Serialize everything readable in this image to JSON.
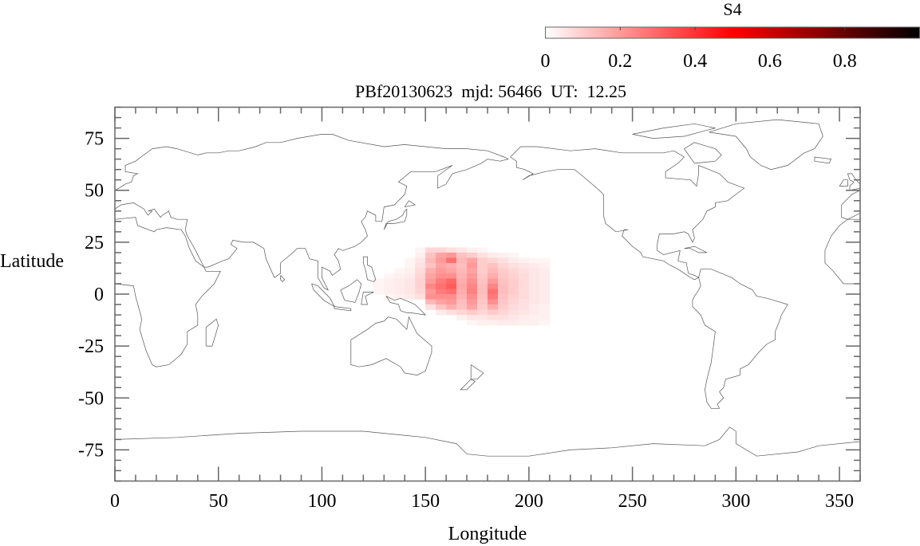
{
  "chart_data": {
    "type": "heatmap",
    "title": "PBf20130623  mjd: 56466  UT:  12.25",
    "xlabel": "Longitude",
    "ylabel": "Latitude",
    "xlim": [
      0,
      360
    ],
    "ylim": [
      -90,
      90
    ],
    "xticks": [
      "0",
      "50",
      "100",
      "150",
      "200",
      "250",
      "300",
      "350"
    ],
    "yticks": [
      "75",
      "50",
      "25",
      "0",
      "-25",
      "-50",
      "-75"
    ],
    "grid": false,
    "background": "world coastlines",
    "colorbar": {
      "label": "S4",
      "range": [
        0,
        1
      ],
      "ticks": [
        "0",
        "0.2",
        "0.4",
        "0.6",
        "0.8"
      ],
      "colormap": [
        "#ffffff",
        "#ff0000",
        "#000000"
      ],
      "placement": "top-right"
    },
    "grid_cells": {
      "lon_centers": [
        127.5,
        132.5,
        137.5,
        142.5,
        147.5,
        152.5,
        157.5,
        162.5,
        167.5,
        172.5,
        177.5,
        182.5,
        187.5,
        192.5,
        197.5,
        202.5,
        207.5
      ],
      "lat_centers": [
        21.25,
        18.75,
        16.25,
        13.75,
        11.25,
        8.75,
        6.25,
        3.75,
        1.25,
        -1.25,
        -3.75,
        -6.25,
        -8.75,
        -11.25,
        -13.75
      ],
      "values": [
        [
          0,
          0,
          0,
          0,
          0.02,
          0.08,
          0.08,
          0.06,
          0.05,
          0.03,
          0.02,
          0,
          0,
          0,
          0,
          0,
          0
        ],
        [
          0,
          0,
          0,
          0,
          0.03,
          0.12,
          0.18,
          0.2,
          0.12,
          0.1,
          0.06,
          0.04,
          0.03,
          0.02,
          0,
          0,
          0
        ],
        [
          0,
          0,
          0,
          0.02,
          0.05,
          0.14,
          0.2,
          0.28,
          0.14,
          0.18,
          0.1,
          0.08,
          0.06,
          0.04,
          0.03,
          0.02,
          0.02
        ],
        [
          0,
          0,
          0,
          0.02,
          0.06,
          0.12,
          0.18,
          0.16,
          0.13,
          0.2,
          0.1,
          0.12,
          0.08,
          0.06,
          0.05,
          0.04,
          0.03
        ],
        [
          0,
          0,
          0.02,
          0.03,
          0.07,
          0.16,
          0.2,
          0.18,
          0.14,
          0.18,
          0.1,
          0.14,
          0.1,
          0.08,
          0.06,
          0.05,
          0.04
        ],
        [
          0,
          0.02,
          0.03,
          0.04,
          0.08,
          0.18,
          0.22,
          0.22,
          0.15,
          0.2,
          0.11,
          0.16,
          0.11,
          0.09,
          0.07,
          0.05,
          0.04
        ],
        [
          0.02,
          0.03,
          0.04,
          0.05,
          0.09,
          0.2,
          0.26,
          0.3,
          0.16,
          0.22,
          0.12,
          0.2,
          0.12,
          0.1,
          0.07,
          0.05,
          0.04
        ],
        [
          0.02,
          0.03,
          0.04,
          0.05,
          0.09,
          0.24,
          0.28,
          0.32,
          0.17,
          0.24,
          0.13,
          0.24,
          0.13,
          0.1,
          0.07,
          0.05,
          0.04
        ],
        [
          0.02,
          0.03,
          0.04,
          0.05,
          0.08,
          0.2,
          0.26,
          0.28,
          0.16,
          0.25,
          0.13,
          0.28,
          0.13,
          0.1,
          0.07,
          0.05,
          0.04
        ],
        [
          0,
          0.02,
          0.03,
          0.04,
          0.06,
          0.22,
          0.22,
          0.22,
          0.15,
          0.22,
          0.12,
          0.26,
          0.12,
          0.09,
          0.07,
          0.05,
          0.04
        ],
        [
          0,
          0,
          0,
          0,
          0,
          0.14,
          0.18,
          0.2,
          0.13,
          0.2,
          0.11,
          0.22,
          0.11,
          0.08,
          0.06,
          0.05,
          0.04
        ],
        [
          0,
          0,
          0,
          0,
          0,
          0.06,
          0.12,
          0.16,
          0.12,
          0.18,
          0.1,
          0.16,
          0.1,
          0.07,
          0.06,
          0.04,
          0.03
        ],
        [
          0,
          0,
          0,
          0,
          0,
          0,
          0.04,
          0.06,
          0.08,
          0.1,
          0.08,
          0.1,
          0.08,
          0.06,
          0.05,
          0.04,
          0.03
        ],
        [
          0,
          0,
          0,
          0,
          0,
          0,
          0,
          0,
          0.03,
          0.05,
          0.05,
          0.06,
          0.06,
          0.05,
          0.04,
          0.03,
          0.03
        ],
        [
          0,
          0,
          0,
          0,
          0,
          0,
          0,
          0,
          0,
          0.02,
          0.03,
          0.03,
          0.04,
          0.04,
          0.03,
          0.03,
          0.02
        ]
      ]
    }
  }
}
